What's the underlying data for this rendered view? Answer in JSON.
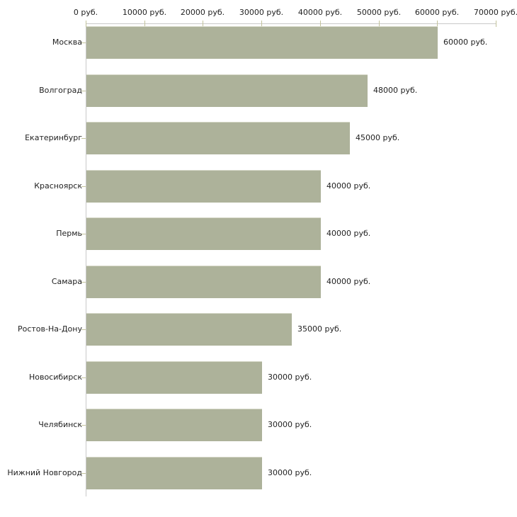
{
  "chart_data": {
    "type": "bar",
    "orientation": "horizontal",
    "title": "",
    "xlabel": "",
    "ylabel": "",
    "unit": "руб.",
    "categories": [
      "Москва",
      "Волгоград",
      "Екатеринбург",
      "Красноярск",
      "Пермь",
      "Самара",
      "Ростов-На-Дону",
      "Новосибирск",
      "Челябинск",
      "Нижний Новгород"
    ],
    "values": [
      60000,
      48000,
      45000,
      40000,
      40000,
      40000,
      35000,
      30000,
      30000,
      30000
    ],
    "value_labels": [
      "60000 руб.",
      "48000 руб.",
      "45000 руб.",
      "40000 руб.",
      "40000 руб.",
      "40000 руб.",
      "35000 руб.",
      "30000 руб.",
      "30000 руб.",
      "30000 руб."
    ],
    "x_ticks": [
      0,
      10000,
      20000,
      30000,
      40000,
      50000,
      60000,
      70000
    ],
    "x_tick_labels": [
      "0 руб.",
      "10000 руб.",
      "20000 руб.",
      "30000 руб.",
      "40000 руб.",
      "50000 руб.",
      "60000 руб.",
      "70000 руб."
    ],
    "xlim": [
      0,
      70000
    ],
    "grid": false,
    "legend": "none",
    "axis_position": "top",
    "colors": {
      "bar": "#adb29a",
      "bar_top_edge": "#d6d8c8",
      "axis_line": "#c9c9c9",
      "tick_mark": "#c3c39c",
      "text": "#222222"
    }
  }
}
